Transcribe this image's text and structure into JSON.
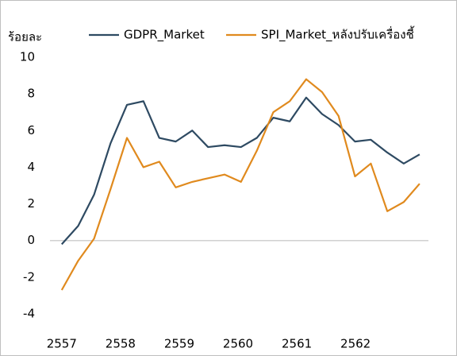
{
  "chart_data": {
    "type": "line",
    "y_label": "ร้อยละ",
    "x": [
      2557,
      2557.28,
      2557.55,
      2557.83,
      2558.11,
      2558.39,
      2558.66,
      2558.94,
      2559.22,
      2559.49,
      2559.77,
      2560.05,
      2560.32,
      2560.6,
      2560.88,
      2561.16,
      2561.43,
      2561.71,
      2561.99,
      2562.26,
      2562.54,
      2562.82,
      2563.09
    ],
    "series": [
      {
        "name": "GDPR_Market",
        "color": "#2e4a62",
        "values": [
          -0.2,
          0.8,
          2.5,
          5.3,
          7.4,
          7.6,
          5.6,
          5.4,
          6.0,
          5.1,
          5.2,
          5.1,
          5.6,
          6.7,
          6.5,
          7.8,
          6.9,
          6.3,
          5.4,
          5.5,
          4.8,
          4.2,
          4.7
        ]
      },
      {
        "name": "SPI_Market_หลังปรับเครื่องชี้",
        "color": "#e08a1e",
        "values": [
          -2.7,
          -1.1,
          0.1,
          2.8,
          5.6,
          4.0,
          4.3,
          2.9,
          3.2,
          3.4,
          3.6,
          3.2,
          4.9,
          7.0,
          7.6,
          8.8,
          8.1,
          6.8,
          3.5,
          4.2,
          1.6,
          2.1,
          3.1
        ]
      }
    ],
    "xlim": [
      2556.8,
      2563.24
    ],
    "xticks": [
      2557,
      2558,
      2559,
      2560,
      2561,
      2562
    ],
    "ylim": [
      -4,
      10
    ],
    "yticks": [
      -4,
      -2,
      0,
      2,
      4,
      6,
      8,
      10
    ],
    "grid": false
  }
}
